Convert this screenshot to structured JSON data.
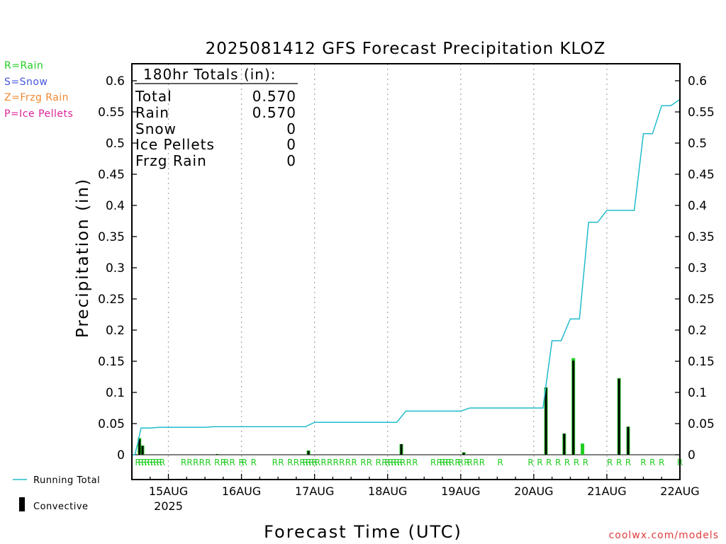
{
  "chart_data": {
    "type": "bar",
    "title": "2025081412 GFS Forecast Precipitation KLOZ",
    "xlabel": "Forecast Time (UTC)",
    "ylabel": "Precipitation (in)",
    "ylim": [
      0,
      0.625
    ],
    "yticks": [
      "0",
      "0.05",
      "0.1",
      "0.15",
      "0.2",
      "0.25",
      "0.3",
      "0.35",
      "0.4",
      "0.45",
      "0.5",
      "0.55",
      "0.6"
    ],
    "x_unit": "hours since 2025-08-14 12Z",
    "xlim": [
      0,
      180
    ],
    "xticks": [
      {
        "hour": 12,
        "label": "15AUG",
        "sublabel": "2025"
      },
      {
        "hour": 36,
        "label": "16AUG"
      },
      {
        "hour": 60,
        "label": "17AUG"
      },
      {
        "hour": 84,
        "label": "18AUG"
      },
      {
        "hour": 108,
        "label": "19AUG"
      },
      {
        "hour": 132,
        "label": "20AUG"
      },
      {
        "hour": 156,
        "label": "21AUG"
      },
      {
        "hour": 180,
        "label": "22AUG"
      }
    ],
    "grid": true,
    "totals_box": {
      "header": "180hr Totals (in):",
      "rows": [
        {
          "label": "Total",
          "value": "0.570"
        },
        {
          "label": "Rain",
          "value": "0.570"
        },
        {
          "label": "Snow",
          "value": "0"
        },
        {
          "label": "Ice Pellets",
          "value": "0"
        },
        {
          "label": "Frzg Rain",
          "value": "0"
        }
      ]
    },
    "precip_type_legend": [
      {
        "text": "R=Rain",
        "color": "#22cc22"
      },
      {
        "text": "S=Snow",
        "color": "#4455dd"
      },
      {
        "text": "Z=Frzg Rain",
        "color": "#ee8833"
      },
      {
        "text": "P=Ice Pellets",
        "color": "#dd2299"
      }
    ],
    "series_legend": [
      {
        "name": "Running Total",
        "color": "#22bbcc"
      },
      {
        "name": "Convective",
        "color": "#000000"
      }
    ],
    "running_total": [
      [
        0,
        0
      ],
      [
        1,
        0
      ],
      [
        2,
        0.02
      ],
      [
        3,
        0.043
      ],
      [
        6,
        0.043
      ],
      [
        9,
        0.044
      ],
      [
        24,
        0.044
      ],
      [
        27,
        0.045
      ],
      [
        57,
        0.045
      ],
      [
        60,
        0.052
      ],
      [
        87,
        0.052
      ],
      [
        90,
        0.07
      ],
      [
        108,
        0.07
      ],
      [
        111,
        0.075
      ],
      [
        135,
        0.075
      ],
      [
        138,
        0.183
      ],
      [
        141,
        0.183
      ],
      [
        144,
        0.218
      ],
      [
        147,
        0.218
      ],
      [
        150,
        0.373
      ],
      [
        153,
        0.373
      ],
      [
        156,
        0.392
      ],
      [
        165,
        0.392
      ],
      [
        168,
        0.515
      ],
      [
        171,
        0.515
      ],
      [
        174,
        0.56
      ],
      [
        177,
        0.56
      ],
      [
        180,
        0.57
      ]
    ],
    "total_bars": [
      {
        "x": 2.5,
        "value": 0.027
      },
      {
        "x": 3.5,
        "value": 0.015
      },
      {
        "x": 28,
        "value": 0.001
      },
      {
        "x": 58,
        "value": 0.007
      },
      {
        "x": 88.5,
        "value": 0.017
      },
      {
        "x": 109,
        "value": 0.004
      },
      {
        "x": 136,
        "value": 0.108
      },
      {
        "x": 142,
        "value": 0.034
      },
      {
        "x": 145,
        "value": 0.155
      },
      {
        "x": 148,
        "value": 0.018
      },
      {
        "x": 160,
        "value": 0.123
      },
      {
        "x": 163,
        "value": 0.045
      }
    ],
    "convective_bars": [
      {
        "x": 2.5,
        "value": 0.025
      },
      {
        "x": 3.5,
        "value": 0.014
      },
      {
        "x": 28,
        "value": 0.001
      },
      {
        "x": 58,
        "value": 0.006
      },
      {
        "x": 88.5,
        "value": 0.017
      },
      {
        "x": 109,
        "value": 0.003
      },
      {
        "x": 136,
        "value": 0.108
      },
      {
        "x": 142,
        "value": 0.034
      },
      {
        "x": 145,
        "value": 0.151
      },
      {
        "x": 160,
        "value": 0.122
      },
      {
        "x": 163,
        "value": 0.045
      }
    ],
    "precip_type_markers": {
      "text": "R",
      "color": "#22cc22",
      "hours": [
        2,
        3,
        4,
        5,
        6,
        7,
        8,
        9,
        10,
        17,
        19,
        21,
        23,
        25,
        28,
        30,
        31,
        33,
        36,
        37,
        40,
        47,
        49,
        52,
        54,
        56,
        57,
        58,
        59,
        60,
        61,
        63,
        65,
        67,
        69,
        71,
        73,
        76,
        78,
        81,
        83,
        84,
        85,
        86,
        87,
        88,
        89,
        91,
        93,
        99,
        101,
        102,
        103,
        104,
        105,
        107,
        108,
        110,
        111,
        113,
        115,
        121,
        131,
        134,
        137,
        140,
        143,
        146,
        149,
        157,
        160,
        163,
        168,
        171,
        174,
        180
      ]
    }
  },
  "credit": "coolwx.com/models"
}
